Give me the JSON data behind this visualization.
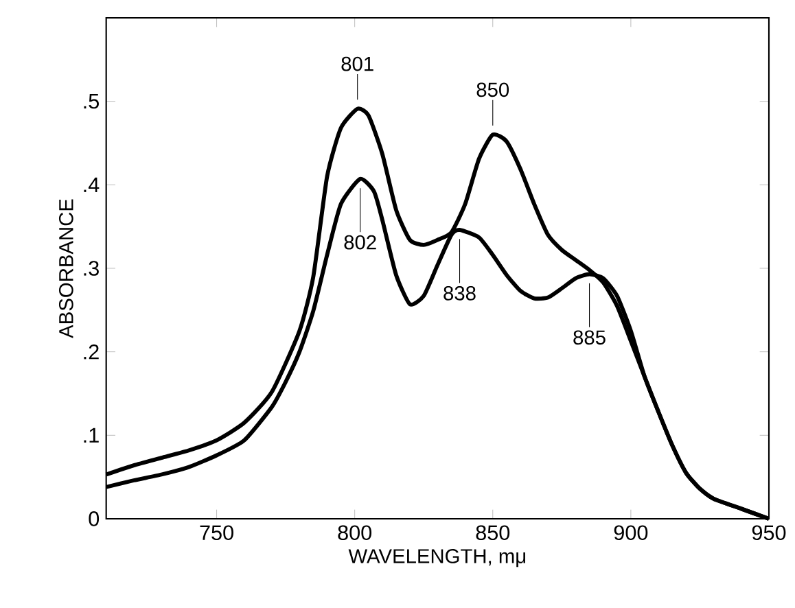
{
  "chart_data": {
    "type": "line",
    "xlabel": "WAVELENGTH, mμ",
    "ylabel": "ABSORBANCE",
    "xlim": [
      710,
      950
    ],
    "xticks": [
      750,
      800,
      850,
      900,
      950
    ],
    "ylim": [
      0,
      0.6
    ],
    "yticks": [
      0,
      {
        "value": 0.1,
        "label": ".1"
      },
      {
        "value": 0.2,
        "label": ".2"
      },
      {
        "value": 0.3,
        "label": ".3"
      },
      {
        "value": 0.4,
        "label": ".4"
      },
      {
        "value": 0.5,
        "label": ".5"
      }
    ],
    "grid": false,
    "marker": "none",
    "line_style": "solid",
    "series": [
      {
        "color": "#000000",
        "x": [
          710,
          720,
          730,
          740,
          750,
          760,
          770,
          780,
          785,
          790,
          795,
          801,
          805,
          810,
          815,
          820,
          825,
          830,
          835,
          840,
          845,
          850,
          855,
          860,
          865,
          870,
          875,
          880,
          885,
          890,
          895,
          900,
          905,
          910,
          915,
          920,
          925,
          930,
          940,
          950
        ],
        "values": [
          0.053,
          0.064,
          0.073,
          0.082,
          0.094,
          0.115,
          0.152,
          0.225,
          0.29,
          0.41,
          0.468,
          0.491,
          0.483,
          0.437,
          0.37,
          0.334,
          0.328,
          0.334,
          0.343,
          0.377,
          0.431,
          0.46,
          0.452,
          0.419,
          0.377,
          0.34,
          0.322,
          0.31,
          0.298,
          0.283,
          0.255,
          0.213,
          0.17,
          0.128,
          0.088,
          0.055,
          0.036,
          0.024,
          0.012,
          0
        ]
      },
      {
        "color": "#000000",
        "x": [
          710,
          720,
          730,
          740,
          750,
          760,
          770,
          775,
          780,
          785,
          790,
          795,
          802,
          807,
          810,
          815,
          820,
          825,
          830,
          835,
          838,
          845,
          850,
          855,
          860,
          865,
          870,
          875,
          880,
          885,
          890,
          895,
          900,
          905,
          910,
          915,
          920,
          925,
          930,
          940,
          950
        ],
        "values": [
          0.038,
          0.046,
          0.053,
          0.062,
          0.076,
          0.094,
          0.134,
          0.164,
          0.2,
          0.249,
          0.316,
          0.377,
          0.407,
          0.392,
          0.358,
          0.292,
          0.257,
          0.267,
          0.304,
          0.34,
          0.346,
          0.337,
          0.316,
          0.292,
          0.273,
          0.264,
          0.265,
          0.276,
          0.288,
          0.293,
          0.288,
          0.267,
          0.225,
          0.17,
          0.128,
          0.088,
          0.055,
          0.036,
          0.024,
          0.012,
          0
        ]
      }
    ],
    "annotations": [
      {
        "text": "801",
        "x": 801,
        "y": 0.491
      },
      {
        "text": "802",
        "x": 802,
        "y": 0.407
      },
      {
        "text": "850",
        "x": 850,
        "y": 0.46
      },
      {
        "text": "838",
        "x": 838,
        "y": 0.346
      },
      {
        "text": "885",
        "x": 885,
        "y": 0.293
      }
    ]
  }
}
